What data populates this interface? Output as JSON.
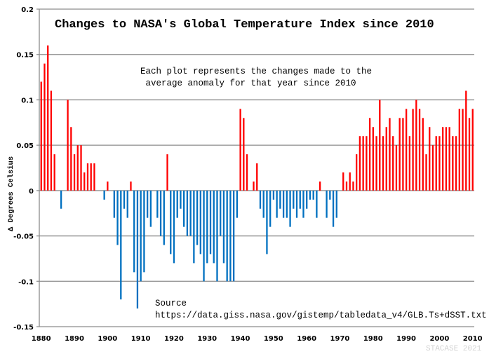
{
  "chart_data": {
    "type": "bar",
    "title": "Changes to NASA's Global Temperature Index since 2010",
    "annotation_lines": [
      "Each plot represents the changes made to the",
      " average anomaly for that year since 2010"
    ],
    "source_label": "Source",
    "source_url": "https://data.giss.nasa.gov/gistemp/tabledata_v4/GLB.Ts+dSST.txt",
    "watermark": "STACASE 2021",
    "xlabel": "",
    "ylabel": "Δ Degrees Celsius",
    "xlim": [
      1880,
      2010
    ],
    "ylim": [
      -0.15,
      0.2
    ],
    "x_ticks": [
      1880,
      1890,
      1900,
      1910,
      1920,
      1930,
      1940,
      1950,
      1960,
      1970,
      1980,
      1990,
      2000,
      2010
    ],
    "y_ticks": [
      0.2,
      0.15,
      0.1,
      0.05,
      0,
      -0.05,
      -0.1,
      -0.15
    ],
    "y_tick_labels": [
      "0.2",
      "0.15",
      "0.1",
      "0.05",
      "0",
      "-0.05",
      "-0.1",
      "-0.15"
    ],
    "grid": "horizontal",
    "colors": {
      "positive": "#ff0000",
      "negative": "#0070c0",
      "grid": "#8c8c8c"
    },
    "x_start": 1880,
    "values": [
      0.12,
      0.14,
      0.16,
      0.11,
      0.04,
      0,
      -0.02,
      0,
      0.1,
      0.07,
      0.04,
      0.05,
      0.05,
      0.02,
      0.03,
      0.03,
      0.03,
      0,
      0,
      -0.01,
      0.01,
      0,
      -0.03,
      -0.06,
      -0.12,
      -0.02,
      -0.03,
      0.01,
      -0.09,
      -0.13,
      -0.1,
      -0.09,
      -0.03,
      -0.04,
      0,
      -0.03,
      -0.05,
      -0.06,
      0.04,
      -0.07,
      -0.08,
      -0.03,
      -0.02,
      -0.04,
      -0.05,
      -0.05,
      -0.08,
      -0.06,
      -0.07,
      -0.1,
      -0.08,
      -0.07,
      -0.08,
      -0.1,
      -0.05,
      -0.08,
      -0.1,
      -0.1,
      -0.1,
      -0.03,
      0.09,
      0.08,
      0.04,
      0,
      0.01,
      0.03,
      -0.02,
      -0.03,
      -0.07,
      -0.04,
      -0.01,
      -0.03,
      -0.02,
      -0.03,
      -0.03,
      -0.04,
      -0.02,
      -0.03,
      -0.02,
      -0.03,
      -0.02,
      -0.01,
      -0.01,
      -0.03,
      0.01,
      0,
      -0.03,
      -0.01,
      -0.04,
      -0.03,
      0,
      0.02,
      0.01,
      0.02,
      0.01,
      0.04,
      0.06,
      0.06,
      0.06,
      0.08,
      0.07,
      0.06,
      0.1,
      0.06,
      0.07,
      0.08,
      0.06,
      0.05,
      0.08,
      0.08,
      0.09,
      0.06,
      0.09,
      0.1,
      0.09,
      0.08,
      0.04,
      0.07,
      0.05,
      0.06,
      0.06,
      0.07,
      0.07,
      0.07,
      0.06,
      0.06,
      0.09,
      0.09,
      0.11,
      0.08,
      0.09
    ]
  }
}
